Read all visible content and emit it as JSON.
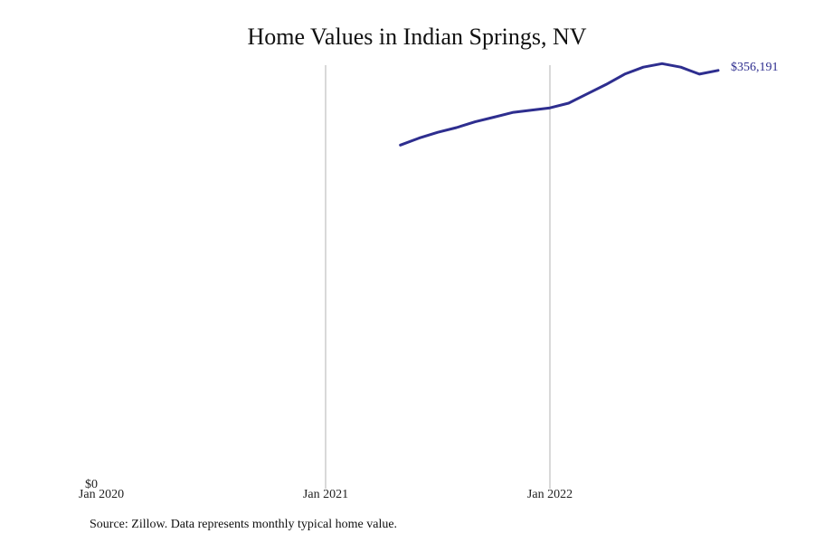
{
  "chart_data": {
    "type": "line",
    "title": "Home Values in Indian Springs, NV",
    "source": "Source: Zillow. Data represents monthly typical home value.",
    "xlabel": "",
    "ylabel": "",
    "x_ticks": [
      "Jan 2020",
      "Jan 2021",
      "Jan 2022"
    ],
    "y_ticks": [
      "$0"
    ],
    "xlim": [
      "2020-01",
      "2022-10"
    ],
    "ylim": [
      0,
      370000
    ],
    "grid": "vertical at year ticks",
    "legend": "none",
    "end_label": "$356,191",
    "series": [
      {
        "color": "#2e2e8f",
        "x": [
          "2021-05",
          "2021-06",
          "2021-07",
          "2021-08",
          "2021-09",
          "2021-10",
          "2021-11",
          "2021-12",
          "2022-01",
          "2022-02",
          "2022-03",
          "2022-04",
          "2022-05",
          "2022-06",
          "2022-07",
          "2022-08",
          "2022-09",
          "2022-10"
        ],
        "y": [
          292000,
          298000,
          303000,
          307000,
          312000,
          316000,
          320000,
          322000,
          324000,
          328000,
          336000,
          344000,
          353000,
          359000,
          362000,
          359000,
          353000,
          356191
        ]
      }
    ]
  }
}
